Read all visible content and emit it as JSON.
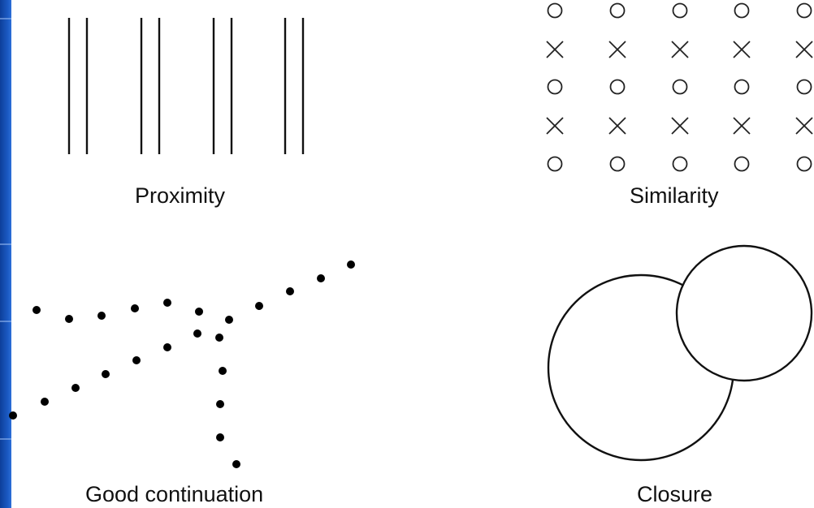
{
  "captions": {
    "proximity": "Proximity",
    "similarity": "Similarity",
    "continuation": "Good continuation",
    "closure": "Closure"
  },
  "proximity": {
    "pairs": 4,
    "lines_per_pair": 2
  },
  "similarity": {
    "row_pattern": [
      "o",
      "x",
      "o",
      "x",
      "o"
    ],
    "columns": 5
  },
  "continuation": {
    "dot_count": 22
  },
  "closure": {
    "shapes": [
      "large-circle",
      "small-circle"
    ]
  },
  "colors": {
    "slide_edge": "#1b5bc4",
    "ink": "#111111",
    "background": "#ffffff"
  }
}
